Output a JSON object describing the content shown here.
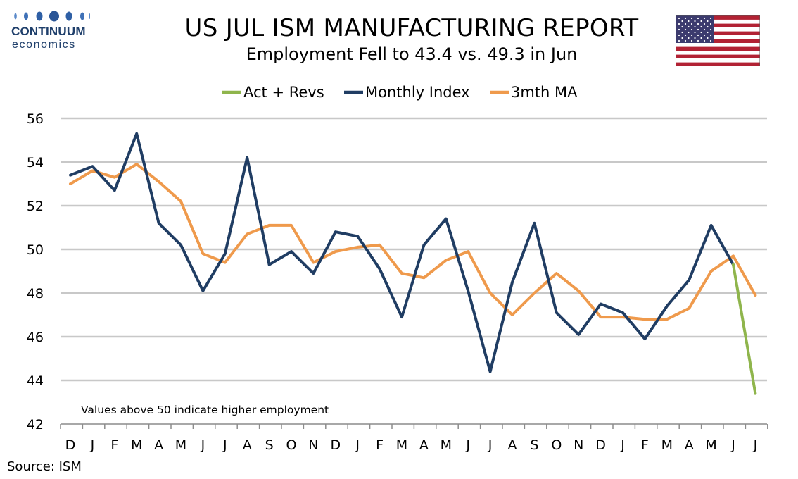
{
  "logo": {
    "name": "CONTINUUM",
    "sub": "economics",
    "color": "#1f3f6b"
  },
  "header": {
    "title": "US JUL ISM MANUFACTURING REPORT",
    "subtitle": "Employment Fell to 43.4 vs. 49.3 in Jun",
    "flag": "us-flag-icon"
  },
  "footer": {
    "source": "Source: ISM"
  },
  "chart_data": {
    "type": "line",
    "title": "",
    "xlabel": "",
    "ylabel": "",
    "ylim": [
      42,
      56
    ],
    "yticks": [
      42,
      44,
      46,
      48,
      50,
      52,
      54,
      56
    ],
    "grid": true,
    "legend_position": "top",
    "annotation": "Values above 50 indicate higher employment",
    "categories": [
      "D",
      "J",
      "F",
      "M",
      "A",
      "M",
      "J",
      "J",
      "A",
      "S",
      "O",
      "N",
      "D",
      "J",
      "F",
      "M",
      "A",
      "M",
      "J",
      "J",
      "A",
      "S",
      "O",
      "N",
      "D",
      "J",
      "F",
      "M",
      "A",
      "M",
      "J",
      "J"
    ],
    "series": [
      {
        "name": "Act + Revs",
        "color": "#8fb54c",
        "values": [
          null,
          null,
          null,
          null,
          null,
          null,
          null,
          null,
          null,
          null,
          null,
          null,
          null,
          null,
          null,
          null,
          null,
          null,
          null,
          null,
          null,
          null,
          null,
          null,
          null,
          null,
          null,
          null,
          null,
          null,
          49.3,
          43.4
        ]
      },
      {
        "name": "Monthly Index",
        "color": "#203d63",
        "values": [
          53.4,
          53.8,
          52.7,
          55.3,
          51.2,
          50.2,
          48.1,
          49.8,
          54.2,
          49.3,
          49.9,
          48.9,
          50.8,
          50.6,
          49.1,
          46.9,
          50.2,
          51.4,
          48.1,
          44.4,
          48.5,
          51.2,
          47.1,
          46.1,
          47.5,
          47.1,
          45.9,
          47.4,
          48.6,
          51.1,
          49.3,
          null
        ]
      },
      {
        "name": "3mth MA",
        "color": "#ef9a4c",
        "values": [
          53.0,
          53.6,
          53.3,
          53.9,
          53.1,
          52.2,
          49.8,
          49.4,
          50.7,
          51.1,
          51.1,
          49.4,
          49.9,
          50.1,
          50.2,
          48.9,
          48.7,
          49.5,
          49.9,
          48.0,
          47.0,
          48.0,
          48.9,
          48.1,
          46.9,
          46.9,
          46.8,
          46.8,
          47.3,
          49.0,
          49.7,
          47.9
        ]
      }
    ]
  }
}
